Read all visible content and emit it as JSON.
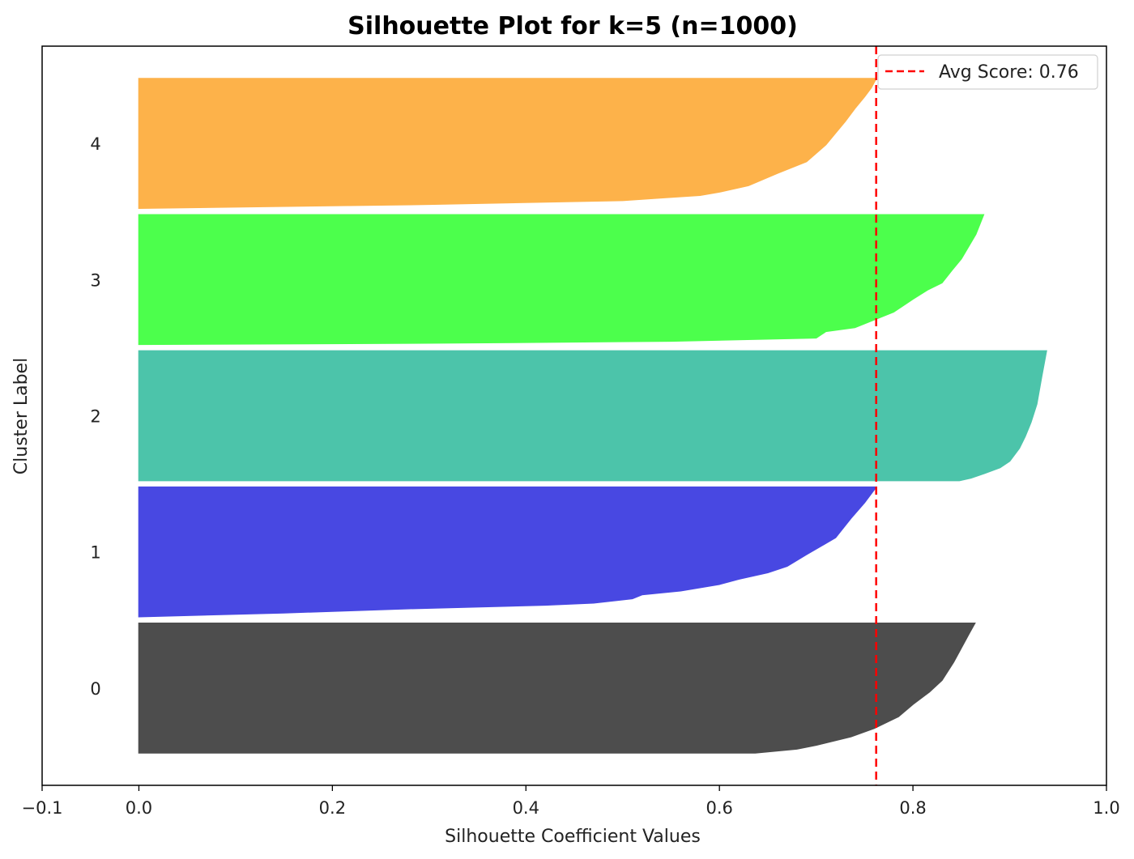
{
  "chart_data": {
    "type": "area",
    "title": "Silhouette Plot for k=5 (n=1000)",
    "xlabel": "Silhouette Coefficient Values",
    "ylabel": "Cluster Label",
    "xlim": [
      -0.1,
      1.0
    ],
    "ylim": [
      0,
      1140
    ],
    "xticks": [
      -0.1,
      0.0,
      0.2,
      0.4,
      0.6,
      0.8,
      1.0
    ],
    "xtick_labels": [
      "−0.1",
      "0.0",
      "0.2",
      "0.4",
      "0.6",
      "0.8",
      "1.0"
    ],
    "grid": false,
    "legend": {
      "placement": "top-right",
      "label": "Avg Score: 0.76"
    },
    "avg_score": 0.762,
    "avg_line_color": "#ff0000",
    "cluster_size": 200,
    "cluster_start": 50,
    "cluster_gap": 10,
    "clusters": [
      {
        "label": "0",
        "color": "#4d4d4d",
        "profile": [
          [
            0,
            0.637
          ],
          [
            0.03,
            0.68
          ],
          [
            0.06,
            0.7
          ],
          [
            0.125,
            0.736
          ],
          [
            0.19,
            0.76
          ],
          [
            0.28,
            0.785
          ],
          [
            0.375,
            0.8
          ],
          [
            0.47,
            0.817
          ],
          [
            0.56,
            0.83
          ],
          [
            0.7,
            0.842
          ],
          [
            0.81,
            0.85
          ],
          [
            0.92,
            0.858
          ],
          [
            1,
            0.864
          ]
        ]
      },
      {
        "label": "1",
        "color": "#4848e2",
        "profile": [
          [
            0,
            0.0
          ],
          [
            0.03,
            0.15
          ],
          [
            0.0625,
            0.28
          ],
          [
            0.09,
            0.42
          ],
          [
            0.106,
            0.47
          ],
          [
            0.14,
            0.51
          ],
          [
            0.17,
            0.52
          ],
          [
            0.2,
            0.56
          ],
          [
            0.25,
            0.6
          ],
          [
            0.29,
            0.62
          ],
          [
            0.34,
            0.65
          ],
          [
            0.39,
            0.67
          ],
          [
            0.48,
            0.69
          ],
          [
            0.61,
            0.72
          ],
          [
            0.76,
            0.736
          ],
          [
            0.88,
            0.75
          ],
          [
            1,
            0.762
          ]
        ]
      },
      {
        "label": "2",
        "color": "#4cc4aa",
        "profile": [
          [
            0,
            0.848
          ],
          [
            0.02,
            0.86
          ],
          [
            0.056,
            0.874
          ],
          [
            0.1,
            0.89
          ],
          [
            0.15,
            0.9
          ],
          [
            0.25,
            0.91
          ],
          [
            0.34,
            0.916
          ],
          [
            0.45,
            0.922
          ],
          [
            0.59,
            0.928
          ],
          [
            0.8,
            0.933
          ],
          [
            1,
            0.938
          ]
        ]
      },
      {
        "label": "3",
        "color": "#4cff4c",
        "profile": [
          [
            0,
            0.0
          ],
          [
            0.01,
            0.3
          ],
          [
            0.025,
            0.55
          ],
          [
            0.05,
            0.7
          ],
          [
            0.1,
            0.71
          ],
          [
            0.13,
            0.74
          ],
          [
            0.19,
            0.76
          ],
          [
            0.25,
            0.78
          ],
          [
            0.3,
            0.79
          ],
          [
            0.35,
            0.8
          ],
          [
            0.42,
            0.815
          ],
          [
            0.475,
            0.83
          ],
          [
            0.57,
            0.84
          ],
          [
            0.66,
            0.85
          ],
          [
            0.85,
            0.865
          ],
          [
            1,
            0.873
          ]
        ]
      },
      {
        "label": "4",
        "color": "#fdb24a",
        "profile": [
          [
            0,
            0.0
          ],
          [
            0.03,
            0.3
          ],
          [
            0.06,
            0.5
          ],
          [
            0.08,
            0.54
          ],
          [
            0.1,
            0.58
          ],
          [
            0.125,
            0.6
          ],
          [
            0.175,
            0.63
          ],
          [
            0.27,
            0.66
          ],
          [
            0.36,
            0.69
          ],
          [
            0.49,
            0.71
          ],
          [
            0.58,
            0.72
          ],
          [
            0.67,
            0.73
          ],
          [
            0.77,
            0.74
          ],
          [
            0.86,
            0.75
          ],
          [
            0.93,
            0.757
          ],
          [
            1,
            0.762
          ]
        ]
      }
    ]
  }
}
